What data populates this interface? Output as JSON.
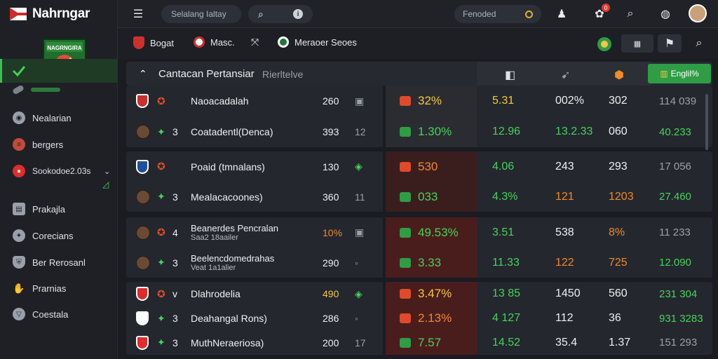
{
  "brand": {
    "name": "Nahrngar"
  },
  "sidebar": {
    "logo_text": "NAGRNGIRA",
    "active_label": "",
    "items": [
      {
        "label": "Nealarian",
        "icon": "globe-icon"
      },
      {
        "label": "bergers",
        "icon": "burger-icon"
      },
      {
        "label": "Sookodoe2.03s",
        "icon": "red-ball-icon"
      },
      {
        "label": "Prakajla",
        "icon": "tablet-icon"
      },
      {
        "label": "Corecians",
        "icon": "ball-icon"
      },
      {
        "label": "Ber Rerosanl",
        "icon": "shield-icon"
      },
      {
        "label": "Prarnias",
        "icon": "handshake-icon"
      },
      {
        "label": "Coestala",
        "icon": "cup-icon"
      }
    ]
  },
  "topbar": {
    "search_placeholder": "Selalang Ialtay",
    "search2_label": "Fenoded",
    "notif_count": "0"
  },
  "subnav": {
    "items": [
      "Bogat",
      "Masc.",
      "Meraoer Seoes"
    ]
  },
  "table": {
    "title": "Cantacan Pertansiar",
    "subtitle": "Rierltelve",
    "highlight_col": "Englil%",
    "accent": "#2e9d45"
  },
  "matches": [
    {
      "rows": [
        {
          "team": "Naoacadalah",
          "num": "",
          "s1": "260",
          "s2": "",
          "odd1": "32%",
          "odd1c": "y",
          "v1": "5.31",
          "v1c": "y",
          "v2": "002%",
          "v2c": "w",
          "v3": "302",
          "v3c": "w",
          "v4": "114 039",
          "v4c": "gr"
        },
        {
          "team": "Coatadentl(Denca)",
          "num": "3",
          "s1": "393",
          "s2": "12",
          "odd1": "1.30%",
          "odd1c": "g",
          "v1": "12.96",
          "v1c": "g",
          "v2": "13.2.33",
          "v2c": "g",
          "v3": "060",
          "v3c": "w",
          "v4": "40.233",
          "v4c": "g"
        }
      ]
    },
    {
      "rows": [
        {
          "team": "Poaid (tmnalans)",
          "num": "",
          "s1": "130",
          "s2": "",
          "odd1": "530",
          "odd1c": "o",
          "v1": "4.06",
          "v1c": "g",
          "v2": "243",
          "v2c": "w",
          "v3": "293",
          "v3c": "w",
          "v4": "17 056",
          "v4c": "gr"
        },
        {
          "team": "Mealacacoones)",
          "num": "3",
          "s1": "360",
          "s2": "11",
          "odd1": "033",
          "odd1c": "g",
          "v1": "4.3%",
          "v1c": "g",
          "v2": "121",
          "v2c": "o",
          "v3": "1203",
          "v3c": "o",
          "v4": "27.460",
          "v4c": "g"
        }
      ]
    },
    {
      "rows": [
        {
          "team": "Beanerdes Pencralan",
          "sub": "Saa2 18aailer",
          "num": "4",
          "s1": "10%",
          "s2": "",
          "odd1": "49.53%",
          "odd1c": "g",
          "v1": "3.51",
          "v1c": "g",
          "v2": "538",
          "v2c": "w",
          "v3": "8%",
          "v3c": "o",
          "v4": "11 233",
          "v4c": "gr"
        },
        {
          "team": "Beelencdomedrahas",
          "sub": "Veat 1a1alier",
          "num": "3",
          "s1": "290",
          "s2": "",
          "odd1": "3.33",
          "odd1c": "g",
          "v1": "11.33",
          "v1c": "g",
          "v2": "122",
          "v2c": "o",
          "v3": "725",
          "v3c": "o",
          "v4": "12.090",
          "v4c": "g"
        }
      ]
    },
    {
      "rows": [
        {
          "team": "Dlahrodelia",
          "num": "v",
          "s1": "490",
          "s2": "",
          "odd1": "3.47%",
          "odd1c": "y",
          "v1": "13 85",
          "v1c": "g",
          "v2": "1450",
          "v2c": "w",
          "v3": "560",
          "v3c": "w",
          "v4": "231 304",
          "v4c": "g"
        },
        {
          "team": "Deahangal Rons)",
          "num": "3",
          "s1": "286",
          "s2": "",
          "odd1": "2.13%",
          "odd1c": "o",
          "v1": "4 127",
          "v1c": "g",
          "v2": "112",
          "v2c": "w",
          "v3": "36",
          "v3c": "w",
          "v4": "931 3283",
          "v4c": "g"
        },
        {
          "team": "MuthNeraeriosa)",
          "num": "3",
          "s1": "200",
          "s2": "17",
          "odd1": "7.57",
          "odd1c": "g",
          "v1": "14.52",
          "v1c": "g",
          "v2": "35.4",
          "v2c": "w",
          "v3": "1.37",
          "v3c": "w",
          "v4": "151 293",
          "v4c": "gr"
        }
      ]
    }
  ]
}
